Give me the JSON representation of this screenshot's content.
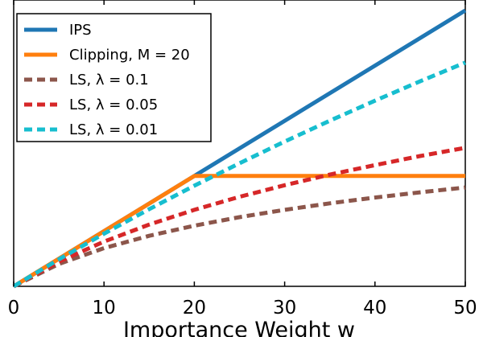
{
  "chart_data": {
    "type": "line",
    "title": "",
    "xlabel": "Importance Weight w",
    "ylabel": "",
    "xlim": [
      0,
      50
    ],
    "ylim": [
      0,
      50
    ],
    "xticks": [
      "0",
      "10",
      "20",
      "30",
      "40",
      "50"
    ],
    "grid": false,
    "legend_position": "top-left",
    "series": [
      {
        "name": "IPS",
        "color": "#1f77b4",
        "style": "solid",
        "x": [
          0,
          10,
          20,
          30,
          40,
          50
        ],
        "y": [
          0,
          10,
          20,
          30,
          40,
          50
        ]
      },
      {
        "name": "Clipping, M = 20",
        "color": "#ff7f0e",
        "style": "solid",
        "x": [
          0,
          10,
          20,
          30,
          40,
          50
        ],
        "y": [
          0,
          10,
          20,
          20,
          20,
          20
        ]
      },
      {
        "name": "LS, λ = 0.1",
        "color": "#8c564b",
        "style": "dashed",
        "x": [
          0,
          5,
          10,
          15,
          20,
          25,
          30,
          35,
          40,
          45,
          50
        ],
        "y": [
          0,
          4.05,
          6.93,
          9.16,
          10.99,
          12.53,
          13.86,
          15.04,
          16.09,
          17.04,
          17.92
        ]
      },
      {
        "name": "LS, λ = 0.05",
        "color": "#d62728",
        "style": "dashed",
        "x": [
          0,
          5,
          10,
          15,
          20,
          25,
          30,
          35,
          40,
          45,
          50
        ],
        "y": [
          0,
          4.46,
          8.11,
          11.2,
          13.86,
          16.22,
          18.33,
          20.25,
          21.97,
          23.61,
          25.1
        ]
      },
      {
        "name": "LS, λ = 0.01",
        "color": "#17becf",
        "style": "dashed",
        "x": [
          0,
          5,
          10,
          15,
          20,
          25,
          30,
          35,
          40,
          45,
          50
        ],
        "y": [
          0,
          4.88,
          9.53,
          13.98,
          18.23,
          22.31,
          26.24,
          30.01,
          33.65,
          37.16,
          40.55
        ]
      }
    ]
  }
}
